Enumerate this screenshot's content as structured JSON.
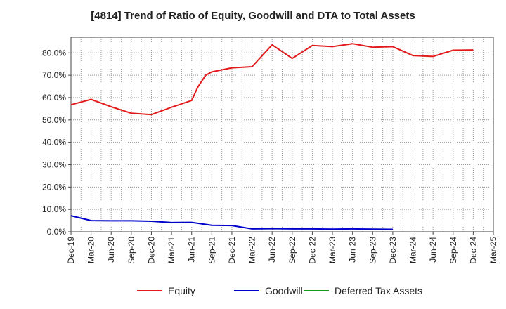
{
  "chart_data": {
    "type": "line",
    "title": "[4814]  Trend of Ratio of Equity, Goodwill and DTA to Total Assets",
    "xlabel": "",
    "ylabel": "",
    "ylim": [
      0,
      87
    ],
    "yticks": [
      0,
      10,
      20,
      30,
      40,
      50,
      60,
      70,
      80
    ],
    "ytick_labels": [
      "0.0%",
      "10.0%",
      "20.0%",
      "30.0%",
      "40.0%",
      "50.0%",
      "60.0%",
      "70.0%",
      "80.0%"
    ],
    "x_categories": [
      "Dec-19",
      "Mar-20",
      "Jun-20",
      "Sep-20",
      "Dec-20",
      "Mar-21",
      "Jun-21",
      "Sep-21",
      "Dec-21",
      "Mar-22",
      "Jun-22",
      "Sep-22",
      "Dec-22",
      "Mar-23",
      "Jun-23",
      "Sep-23",
      "Dec-23",
      "Mar-24",
      "Jun-24",
      "Sep-24",
      "Dec-24",
      "Mar-25"
    ],
    "grid": true,
    "legend_position": "bottom",
    "series": [
      {
        "name": "Equity",
        "color": "#e31a1c",
        "points": [
          [
            0,
            56.8
          ],
          [
            1,
            59.2
          ],
          [
            2,
            55.9
          ],
          [
            3,
            53.0
          ],
          [
            4,
            52.4
          ],
          [
            5,
            55.7
          ],
          [
            6,
            58.7
          ],
          [
            6.3,
            64.6
          ],
          [
            6.7,
            70.0
          ],
          [
            7,
            71.5
          ],
          [
            8,
            73.3
          ],
          [
            9,
            73.8
          ],
          [
            10,
            83.6
          ],
          [
            11,
            77.5
          ],
          [
            12,
            83.3
          ],
          [
            13,
            82.8
          ],
          [
            14,
            84.1
          ],
          [
            15,
            82.5
          ],
          [
            16,
            82.8
          ],
          [
            17,
            78.8
          ],
          [
            18,
            78.4
          ],
          [
            19,
            81.2
          ],
          [
            20,
            81.3
          ]
        ]
      },
      {
        "name": "Goodwill",
        "color": "#0000cc",
        "points": [
          [
            0,
            7.2
          ],
          [
            1,
            5.0
          ],
          [
            2,
            4.9
          ],
          [
            3,
            4.9
          ],
          [
            4,
            4.7
          ],
          [
            5,
            4.1
          ],
          [
            6,
            4.2
          ],
          [
            7,
            2.9
          ],
          [
            8,
            2.8
          ],
          [
            9,
            1.3
          ],
          [
            10,
            1.4
          ],
          [
            11,
            1.3
          ],
          [
            12,
            1.3
          ],
          [
            13,
            1.2
          ],
          [
            14,
            1.3
          ],
          [
            15,
            1.2
          ],
          [
            16,
            1.1
          ]
        ]
      },
      {
        "name": "Deferred Tax Assets",
        "color": "#1a9a1a",
        "points": []
      }
    ]
  }
}
